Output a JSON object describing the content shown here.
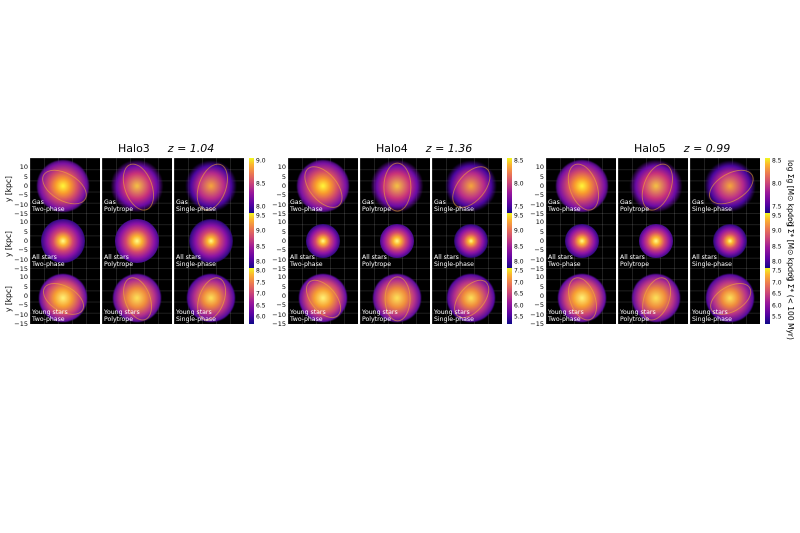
{
  "halos": [
    {
      "name": "Halo3",
      "z_label": "z = 1.04"
    },
    {
      "name": "Halo4",
      "z_label": "z = 1.36"
    },
    {
      "name": "Halo5",
      "z_label": "z = 0.99"
    }
  ],
  "y_axis_label": "y [kpc]",
  "y_ticks": [
    "10",
    "5",
    "0",
    "−5",
    "−10",
    "−15"
  ],
  "rows": [
    {
      "type": "Gas",
      "colorbar_label": "log Σg [M⊙ kpc⁻²]",
      "halo_ticks": [
        [
          "9.0",
          "8.5",
          "8.0"
        ],
        [
          "8.5",
          "8.0",
          "7.5"
        ],
        [
          "8.5",
          "8.0",
          "7.5"
        ]
      ]
    },
    {
      "type": "All stars",
      "colorbar_label": "log Σ* [M⊙ kpc⁻²]",
      "halo_ticks": [
        [
          "9.5",
          "9.0",
          "8.5",
          "8.0"
        ],
        [
          "9.5",
          "9.0",
          "8.5",
          "8.0"
        ],
        [
          "9.5",
          "9.0",
          "8.5",
          "8.0"
        ]
      ]
    },
    {
      "type": "Young stars",
      "colorbar_label": "log Σ* (< 100 Myr)",
      "halo_ticks": [
        [
          "8.0",
          "7.5",
          "7.0",
          "6.5",
          "6.0"
        ],
        [
          "7.5",
          "7.0",
          "6.5",
          "6.0",
          "5.5"
        ],
        [
          "7.5",
          "7.0",
          "6.5",
          "6.0",
          "5.5"
        ]
      ]
    }
  ],
  "models": [
    "Two-phase",
    "Polytrope",
    "Single-phase"
  ],
  "colormap": [
    "#0d0887",
    "#9a179b",
    "#eb7852",
    "#eff821"
  ]
}
